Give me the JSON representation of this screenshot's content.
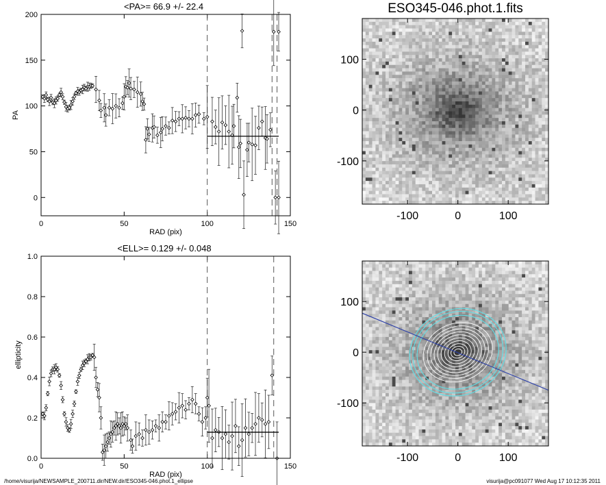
{
  "page": {
    "footer_left": "/home/visurija/NEWSAMPLE_200711.dir/NEW.dir/ESO345-046.phot.1_ellipse",
    "footer_right": "visurija@pc091077  Wed Aug 17 10:12:35 2011"
  },
  "chart_data": [
    {
      "type": "scatter",
      "title": "<PA>=  66.9 +/-  22.4",
      "xlabel": "RAD (pix)",
      "ylabel": "PA",
      "xlim": [
        0,
        150
      ],
      "ylim": [
        -20,
        200
      ],
      "xticks": [
        0,
        50,
        100,
        150
      ],
      "yticks": [
        0,
        50,
        100,
        150,
        200
      ],
      "dashed_x": [
        100,
        139,
        142
      ],
      "mean_line": {
        "x": [
          100,
          143
        ],
        "y": 66.9
      },
      "error_bars": true,
      "points": [
        [
          1,
          110
        ],
        [
          2,
          108
        ],
        [
          3,
          112
        ],
        [
          4,
          107
        ],
        [
          5,
          105
        ],
        [
          6,
          109
        ],
        [
          7,
          104
        ],
        [
          8,
          103
        ],
        [
          9,
          106
        ],
        [
          10,
          108
        ],
        [
          11,
          112
        ],
        [
          12,
          115
        ],
        [
          13,
          110
        ],
        [
          14,
          104
        ],
        [
          15,
          99
        ],
        [
          16,
          97
        ],
        [
          17,
          98
        ],
        [
          18,
          101
        ],
        [
          19,
          105
        ],
        [
          20,
          110
        ],
        [
          21,
          114
        ],
        [
          22,
          116
        ],
        [
          23,
          115
        ],
        [
          24,
          117
        ],
        [
          25,
          118
        ],
        [
          26,
          120
        ],
        [
          27,
          119
        ],
        [
          28,
          121
        ],
        [
          29,
          121
        ],
        [
          30,
          122
        ],
        [
          31,
          122
        ],
        [
          33,
          118
        ],
        [
          35,
          106
        ],
        [
          36,
          95
        ],
        [
          38,
          98
        ],
        [
          39,
          90
        ],
        [
          41,
          98
        ],
        [
          43,
          97
        ],
        [
          45,
          100
        ],
        [
          47,
          98
        ],
        [
          49,
          103
        ],
        [
          50,
          110
        ],
        [
          51,
          121
        ],
        [
          52,
          120
        ],
        [
          53,
          125
        ],
        [
          54,
          119
        ],
        [
          56,
          118
        ],
        [
          58,
          115
        ],
        [
          60,
          113
        ],
        [
          61,
          105
        ],
        [
          62,
          102
        ],
        [
          63,
          63
        ],
        [
          64,
          75
        ],
        [
          65,
          69
        ],
        [
          67,
          76
        ],
        [
          68,
          77
        ],
        [
          70,
          68
        ],
        [
          72,
          71
        ],
        [
          73,
          75
        ],
        [
          75,
          78
        ],
        [
          77,
          76
        ],
        [
          79,
          84
        ],
        [
          81,
          83
        ],
        [
          83,
          86
        ],
        [
          85,
          86
        ],
        [
          87,
          87
        ],
        [
          89,
          86
        ],
        [
          91,
          86
        ],
        [
          93,
          90
        ],
        [
          95,
          91
        ],
        [
          98,
          86
        ],
        [
          100,
          88
        ],
        [
          103,
          83
        ],
        [
          105,
          77
        ],
        [
          107,
          72
        ],
        [
          109,
          82
        ],
        [
          111,
          79
        ],
        [
          113,
          72
        ],
        [
          115,
          68
        ],
        [
          116,
          78
        ],
        [
          118,
          109
        ],
        [
          119,
          55
        ],
        [
          120,
          59
        ],
        [
          121,
          182
        ],
        [
          122,
          3
        ],
        [
          124,
          52
        ],
        [
          125,
          60
        ],
        [
          127,
          58
        ],
        [
          129,
          57
        ],
        [
          131,
          76
        ],
        [
          133,
          83
        ],
        [
          135,
          65
        ],
        [
          136,
          64
        ],
        [
          138,
          74
        ],
        [
          140,
          181
        ],
        [
          141,
          0
        ],
        [
          143,
          181
        ],
        [
          143,
          0
        ]
      ]
    },
    {
      "type": "scatter",
      "title": "<ELL>= 0.129 +/-  0.048",
      "xlabel": "RAD (pix)",
      "ylabel": "ellipticity",
      "xlim": [
        0,
        150
      ],
      "ylim": [
        0,
        1.0
      ],
      "xticks": [
        0,
        50,
        100,
        150
      ],
      "yticks": [
        0.0,
        0.2,
        0.4,
        0.6,
        0.8,
        1.0
      ],
      "dashed_x": [
        100,
        140
      ],
      "mean_line": {
        "x": [
          100,
          143
        ],
        "y": 0.129
      },
      "error_bars": true,
      "points": [
        [
          1,
          0.22
        ],
        [
          2,
          0.21
        ],
        [
          3,
          0.25
        ],
        [
          4,
          0.32
        ],
        [
          5,
          0.38
        ],
        [
          6,
          0.42
        ],
        [
          7,
          0.44
        ],
        [
          8,
          0.44
        ],
        [
          9,
          0.45
        ],
        [
          10,
          0.44
        ],
        [
          11,
          0.41
        ],
        [
          12,
          0.36
        ],
        [
          13,
          0.29
        ],
        [
          14,
          0.22
        ],
        [
          15,
          0.18
        ],
        [
          16,
          0.15
        ],
        [
          17,
          0.14
        ],
        [
          18,
          0.17
        ],
        [
          19,
          0.22
        ],
        [
          20,
          0.27
        ],
        [
          21,
          0.33
        ],
        [
          22,
          0.38
        ],
        [
          23,
          0.41
        ],
        [
          24,
          0.44
        ],
        [
          25,
          0.46
        ],
        [
          26,
          0.47
        ],
        [
          27,
          0.48
        ],
        [
          28,
          0.49
        ],
        [
          29,
          0.5
        ],
        [
          30,
          0.5
        ],
        [
          31,
          0.51
        ],
        [
          32,
          0.5
        ],
        [
          33,
          0.4
        ],
        [
          34,
          0.34
        ],
        [
          35,
          0.3
        ],
        [
          36,
          0.2
        ],
        [
          37,
          0.03
        ],
        [
          38,
          0.04
        ],
        [
          39,
          0.06
        ],
        [
          40,
          0.08
        ],
        [
          41,
          0.1
        ],
        [
          42,
          0.12
        ],
        [
          43,
          0.13
        ],
        [
          44,
          0.15
        ],
        [
          45,
          0.16
        ],
        [
          46,
          0.17
        ],
        [
          47,
          0.16
        ],
        [
          48,
          0.15
        ],
        [
          49,
          0.17
        ],
        [
          50,
          0.16
        ],
        [
          51,
          0.17
        ],
        [
          52,
          0.15
        ],
        [
          54,
          0.09
        ],
        [
          55,
          0.06
        ],
        [
          57,
          0.11
        ],
        [
          59,
          0.12
        ],
        [
          61,
          0.1
        ],
        [
          63,
          0.14
        ],
        [
          65,
          0.13
        ],
        [
          67,
          0.14
        ],
        [
          69,
          0.16
        ],
        [
          71,
          0.15
        ],
        [
          73,
          0.18
        ],
        [
          75,
          0.18
        ],
        [
          77,
          0.21
        ],
        [
          79,
          0.22
        ],
        [
          81,
          0.23
        ],
        [
          83,
          0.25
        ],
        [
          85,
          0.26
        ],
        [
          87,
          0.24
        ],
        [
          89,
          0.27
        ],
        [
          91,
          0.29
        ],
        [
          93,
          0.27
        ],
        [
          95,
          0.22
        ],
        [
          97,
          0.18
        ],
        [
          99,
          0.2
        ],
        [
          100,
          0.3
        ],
        [
          101,
          0.26
        ],
        [
          103,
          0.1
        ],
        [
          105,
          0.14
        ],
        [
          107,
          0.13
        ],
        [
          109,
          0.1
        ],
        [
          111,
          0.12
        ],
        [
          113,
          0.08
        ],
        [
          115,
          0.11
        ],
        [
          117,
          0.16
        ],
        [
          119,
          0.06
        ],
        [
          121,
          0.09
        ],
        [
          123,
          0.15
        ],
        [
          125,
          0.12
        ],
        [
          127,
          0.15
        ],
        [
          129,
          0.17
        ],
        [
          131,
          0.2
        ],
        [
          133,
          0.19
        ],
        [
          135,
          0.17
        ],
        [
          137,
          0.18
        ],
        [
          139,
          0.41
        ],
        [
          142,
          0.0
        ]
      ]
    },
    {
      "type": "heatmap",
      "title": "ESO345-046.phot.1.fits",
      "xlim": [
        -190,
        180
      ],
      "ylim": [
        -185,
        180
      ],
      "xticks": [
        -100,
        0,
        100
      ],
      "yticks": [
        -100,
        0,
        100
      ],
      "xticklabels": [
        "-100",
        "0",
        "100"
      ],
      "yticklabels": [
        "-100",
        "0",
        "100"
      ],
      "colormap": "gray (inverted)"
    },
    {
      "type": "heatmap",
      "title": "",
      "xlim": [
        -190,
        180
      ],
      "ylim": [
        -185,
        180
      ],
      "xticks": [
        -100,
        0,
        100
      ],
      "yticks": [
        -100,
        0,
        100
      ],
      "xticklabels": [
        "-100",
        "0",
        "100"
      ],
      "yticklabels": [
        "-100",
        "0",
        "100"
      ],
      "colormap": "gray (inverted)",
      "overlays": [
        "ellipse isophotes",
        "major-axis line"
      ],
      "contour_color": "#5fe0e8",
      "axis_line_color": "#2b3fa8"
    }
  ]
}
